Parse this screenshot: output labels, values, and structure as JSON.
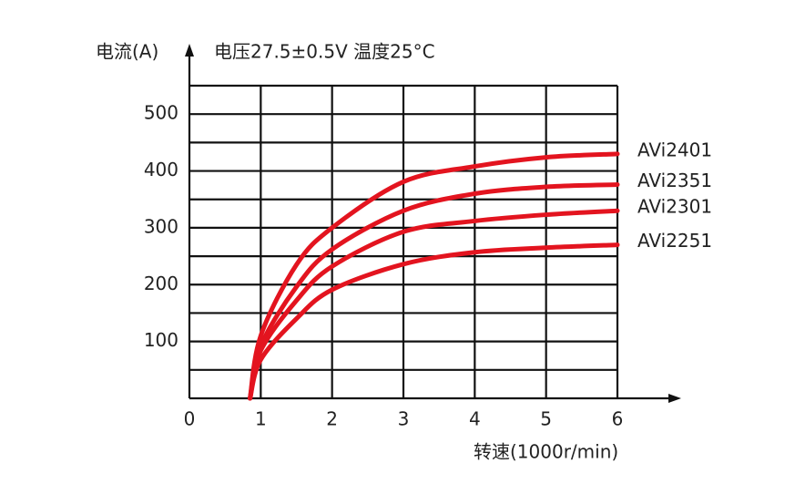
{
  "chart_data": {
    "type": "line",
    "title": "电压27.5±0.5V 温度25°C",
    "y_label": "电流(A)",
    "x_label": "转速(1000r/min)",
    "x": [
      0.85,
      1,
      1.5,
      2,
      3,
      4,
      5,
      6
    ],
    "series": [
      {
        "name": "AVi2401",
        "color": "#e3141f",
        "values": [
          0,
          110,
          235,
          300,
          381,
          408,
          424,
          430
        ]
      },
      {
        "name": "AVi2351",
        "color": "#e3141f",
        "values": [
          0,
          92,
          196,
          262,
          330,
          360,
          372,
          376
        ]
      },
      {
        "name": "AVi2301",
        "color": "#e3141f",
        "values": [
          0,
          84,
          172,
          232,
          293,
          312,
          323,
          330
        ]
      },
      {
        "name": "AVi2251",
        "color": "#e3141f",
        "values": [
          0,
          68,
          140,
          191,
          236,
          257,
          265,
          270
        ]
      }
    ],
    "xlim": [
      0,
      6
    ],
    "xticks": [
      0,
      1,
      2,
      3,
      4,
      5,
      6
    ],
    "ylim": [
      0,
      550
    ],
    "yticks": [
      100,
      200,
      300,
      400,
      500
    ],
    "y_minor_grid": [
      50,
      150,
      250,
      350,
      450,
      550
    ],
    "grid": true
  }
}
